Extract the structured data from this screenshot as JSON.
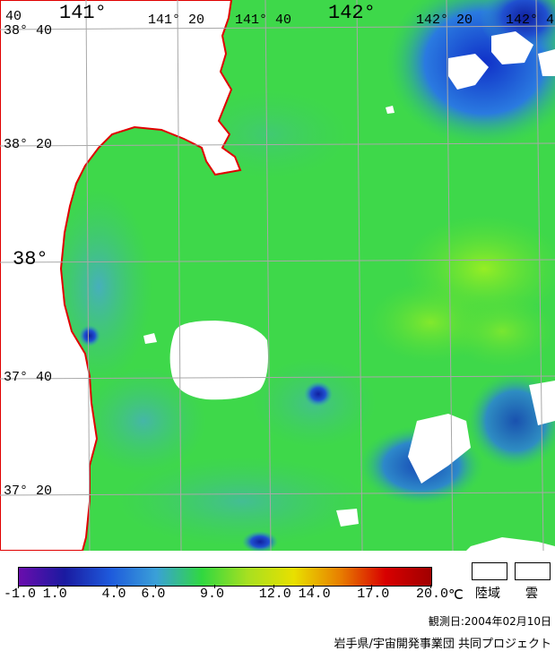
{
  "map": {
    "lon_labels": [
      "141°",
      "141° 20",
      "141° 40",
      "142°",
      "142° 20",
      "142° 4"
    ],
    "lat_labels": [
      "38° 40",
      "38° 20",
      "38°",
      "37° 40",
      "37° 20"
    ],
    "corner_label": "40",
    "coastline_color": "#e00000",
    "land_color": "#ffffff",
    "cloud_color": "#ffffff"
  },
  "legend": {
    "ticks": [
      "-1.0",
      "1.0",
      "4.0",
      "6.0",
      "9.0",
      "12.0",
      "14.0",
      "17.0",
      "20.0"
    ],
    "tick_values": [
      -1,
      1,
      4,
      6,
      9,
      12,
      14,
      17,
      20
    ],
    "unit": "℃",
    "range": [
      -1,
      20
    ],
    "colors": [
      "#6a0dad",
      "#1a1aa0",
      "#1e5adc",
      "#3aa0d8",
      "#30d840",
      "#a8e020",
      "#e8e000",
      "#e88000",
      "#d80000",
      "#a00000"
    ],
    "land_label": "陸域",
    "cloud_label": "雲"
  },
  "observation_date": "観測日:2004年02月10日",
  "credit": "岩手県/宇宙開発事業団 共同プロジェクト"
}
